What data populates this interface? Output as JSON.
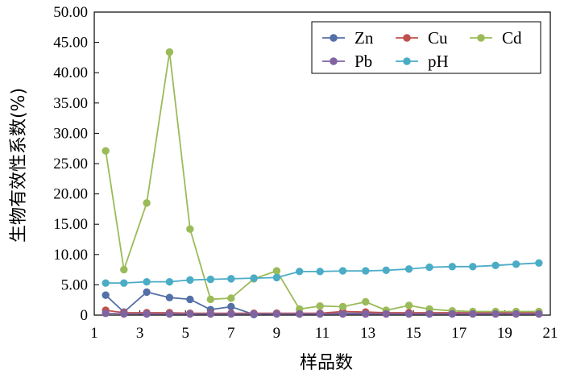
{
  "chart_data": {
    "type": "line",
    "xlabel": "样品数",
    "ylabel": "生物有效性系数(%)",
    "xlim": [
      1,
      21
    ],
    "ylim": [
      0,
      50
    ],
    "xticks": [
      1,
      3,
      5,
      7,
      9,
      11,
      13,
      15,
      17,
      19,
      21
    ],
    "xtick_labels": [
      "1",
      "3",
      "5",
      "7",
      "9",
      "11",
      "13",
      "15",
      "17",
      "19",
      "21"
    ],
    "yticks": [
      0,
      5,
      10,
      15,
      20,
      25,
      30,
      35,
      40,
      45,
      50
    ],
    "ytick_labels": [
      "0",
      "5.00",
      "10.00",
      "15.00",
      "20.00",
      "25.00",
      "30.00",
      "35.00",
      "40.00",
      "45.00",
      "50.00"
    ],
    "grid": false,
    "legend_position": "top-right",
    "x": [
      1.5,
      2.3,
      3.3,
      4.3,
      5.2,
      6.1,
      7.0,
      8.0,
      9.0,
      10.0,
      10.9,
      11.9,
      12.9,
      13.8,
      14.8,
      15.7,
      16.7,
      17.6,
      18.6,
      19.5,
      20.5
    ],
    "series": [
      {
        "name": "Zn",
        "color": "#5470a8",
        "values": [
          3.3,
          0.5,
          3.8,
          2.9,
          2.6,
          0.9,
          1.4,
          0.1,
          0.3,
          0.2,
          0.3,
          0.3,
          0.3,
          0.3,
          0.3,
          0.3,
          0.3,
          0.3,
          0.3,
          0.3,
          0.3
        ]
      },
      {
        "name": "Cu",
        "color": "#c0504d",
        "values": [
          0.8,
          0.4,
          0.4,
          0.4,
          0.3,
          0.3,
          0.3,
          0.3,
          0.3,
          0.3,
          0.3,
          0.6,
          0.5,
          0.4,
          0.4,
          0.4,
          0.4,
          0.4,
          0.4,
          0.4,
          0.4
        ]
      },
      {
        "name": "Cd",
        "color": "#9bbb59",
        "values": [
          27.1,
          7.5,
          18.5,
          43.4,
          14.2,
          2.6,
          2.8,
          6.0,
          7.3,
          1.0,
          1.5,
          1.4,
          2.2,
          0.8,
          1.6,
          1.0,
          0.7,
          0.6,
          0.6,
          0.6,
          0.6
        ]
      },
      {
        "name": "Pb",
        "color": "#8064a2",
        "values": [
          0.3,
          0.2,
          0.2,
          0.2,
          0.2,
          0.2,
          0.2,
          0.2,
          0.2,
          0.2,
          0.2,
          0.2,
          0.2,
          0.2,
          0.2,
          0.2,
          0.2,
          0.2,
          0.2,
          0.2,
          0.2
        ]
      },
      {
        "name": "pH",
        "color": "#4bacc6",
        "values": [
          5.3,
          5.3,
          5.5,
          5.5,
          5.8,
          5.9,
          6.0,
          6.1,
          6.2,
          7.2,
          7.2,
          7.3,
          7.3,
          7.4,
          7.6,
          7.9,
          8.0,
          8.0,
          8.2,
          8.4,
          8.6
        ]
      }
    ]
  }
}
